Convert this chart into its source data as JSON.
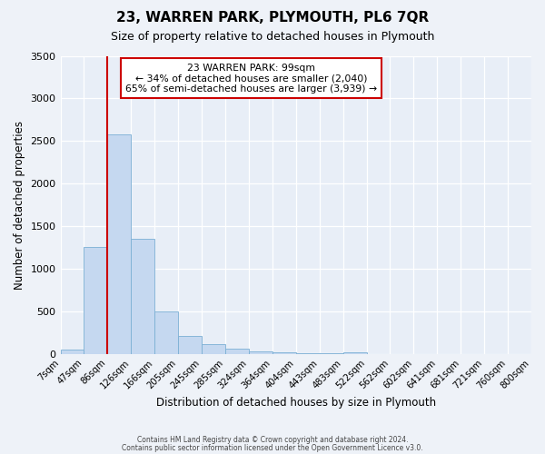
{
  "title": "23, WARREN PARK, PLYMOUTH, PL6 7QR",
  "subtitle": "Size of property relative to detached houses in Plymouth",
  "xlabel": "Distribution of detached houses by size in Plymouth",
  "ylabel": "Number of detached properties",
  "bar_color": "#c5d8f0",
  "bar_edge_color": "#7bafd4",
  "background_color": "#e8eef7",
  "fig_background_color": "#eef2f8",
  "grid_color": "#ffffff",
  "bin_edge_labels": [
    "7sqm",
    "47sqm",
    "86sqm",
    "126sqm",
    "166sqm",
    "205sqm",
    "245sqm",
    "285sqm",
    "324sqm",
    "364sqm",
    "404sqm",
    "443sqm",
    "483sqm",
    "522sqm",
    "562sqm",
    "602sqm",
    "641sqm",
    "681sqm",
    "721sqm",
    "760sqm",
    "800sqm"
  ],
  "bar_values": [
    50,
    1250,
    2580,
    1350,
    500,
    210,
    110,
    55,
    30,
    15,
    5,
    10,
    20,
    0,
    0,
    0,
    0,
    0,
    0,
    0
  ],
  "ylim": [
    0,
    3500
  ],
  "yticks": [
    0,
    500,
    1000,
    1500,
    2000,
    2500,
    3000,
    3500
  ],
  "vline_x": 2.0,
  "vline_color": "#cc0000",
  "property_label": "23 WARREN PARK: 99sqm",
  "annotation_line1": "← 34% of detached houses are smaller (2,040)",
  "annotation_line2": "65% of semi-detached houses are larger (3,939) →",
  "footer1": "Contains HM Land Registry data © Crown copyright and database right 2024.",
  "footer2": "Contains public sector information licensed under the Open Government Licence v3.0."
}
